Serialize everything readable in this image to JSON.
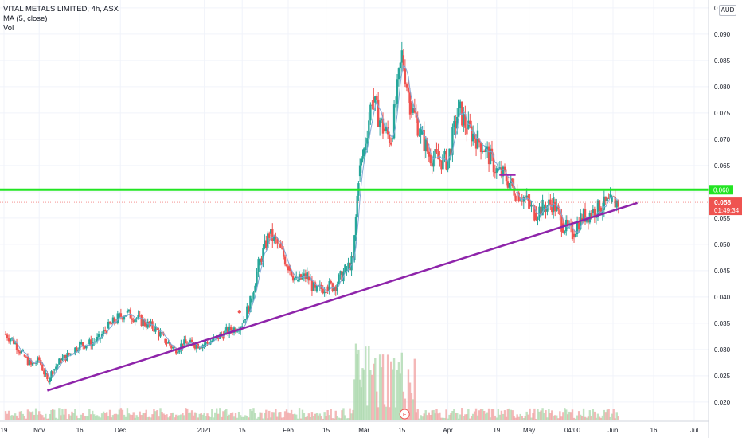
{
  "header": {
    "symbol_line": "VITAL METALS LIMITED, 4h, ASX",
    "indicator_ma": "MA (5, close)",
    "indicator_vol": "Vol",
    "currency": "AUD"
  },
  "chart_data": {
    "type": "candlestick",
    "title": "VITAL METALS LIMITED, 4h, ASX",
    "y_axis": {
      "ticks": [
        "0.020",
        "0.025",
        "0.030",
        "0.035",
        "0.040",
        "0.045",
        "0.050",
        "0.055",
        "0.060",
        "0.065",
        "0.070",
        "0.075",
        "0.080",
        "0.085",
        "0.090",
        "0.095"
      ],
      "range": [
        0.0165,
        0.0965
      ],
      "side": "right"
    },
    "x_axis": {
      "ticks": [
        {
          "label": "19",
          "date": "2020-10-19"
        },
        {
          "label": "Nov",
          "date": "2020-11-01"
        },
        {
          "label": "16",
          "date": "2020-11-16"
        },
        {
          "label": "Dec",
          "date": "2020-12-01"
        },
        {
          "label": "2021",
          "date": "2021-01-01"
        },
        {
          "label": "15",
          "date": "2021-01-15"
        },
        {
          "label": "Feb",
          "date": "2021-02-01"
        },
        {
          "label": "15",
          "date": "2021-02-15"
        },
        {
          "label": "Mar",
          "date": "2021-03-01"
        },
        {
          "label": "15",
          "date": "2021-03-15"
        },
        {
          "label": "Apr",
          "date": "2021-04-01"
        },
        {
          "label": "19",
          "date": "2021-04-19"
        },
        {
          "label": "May",
          "date": "2021-05-01"
        },
        {
          "label": "04:00",
          "date": "2021-05-17"
        },
        {
          "label": "Jun",
          "date": "2021-06-01"
        },
        {
          "label": "16",
          "date": "2021-06-16"
        },
        {
          "label": "Jul",
          "date": "2021-07-01"
        }
      ]
    },
    "price_closes": [
      [
        "2020-10-19",
        0.033
      ],
      [
        "2020-10-22",
        0.032
      ],
      [
        "2020-10-26",
        0.029
      ],
      [
        "2020-10-29",
        0.027
      ],
      [
        "2020-11-01",
        0.028
      ],
      [
        "2020-11-04",
        0.024
      ],
      [
        "2020-11-06",
        0.026
      ],
      [
        "2020-11-09",
        0.028
      ],
      [
        "2020-11-12",
        0.029
      ],
      [
        "2020-11-16",
        0.031
      ],
      [
        "2020-11-19",
        0.031
      ],
      [
        "2020-11-23",
        0.032
      ],
      [
        "2020-11-26",
        0.034
      ],
      [
        "2020-11-30",
        0.036
      ],
      [
        "2020-12-03",
        0.037
      ],
      [
        "2020-12-07",
        0.036
      ],
      [
        "2020-12-10",
        0.035
      ],
      [
        "2020-12-14",
        0.034
      ],
      [
        "2020-12-17",
        0.032
      ],
      [
        "2020-12-21",
        0.03
      ],
      [
        "2020-12-24",
        0.031
      ],
      [
        "2020-12-28",
        0.031
      ],
      [
        "2021-01-01",
        0.031
      ],
      [
        "2021-01-05",
        0.032
      ],
      [
        "2021-01-08",
        0.033
      ],
      [
        "2021-01-12",
        0.034
      ],
      [
        "2021-01-15",
        0.035
      ],
      [
        "2021-01-18",
        0.039
      ],
      [
        "2021-01-21",
        0.046
      ],
      [
        "2021-01-25",
        0.052
      ],
      [
        "2021-01-28",
        0.05
      ],
      [
        "2021-02-01",
        0.046
      ],
      [
        "2021-02-04",
        0.043
      ],
      [
        "2021-02-08",
        0.044
      ],
      [
        "2021-02-11",
        0.041
      ],
      [
        "2021-02-15",
        0.042
      ],
      [
        "2021-02-18",
        0.042
      ],
      [
        "2021-02-22",
        0.045
      ],
      [
        "2021-02-25",
        0.047
      ],
      [
        "2021-02-27",
        0.063
      ],
      [
        "2021-03-01",
        0.068
      ],
      [
        "2021-03-04",
        0.078
      ],
      [
        "2021-03-08",
        0.072
      ],
      [
        "2021-03-11",
        0.07
      ],
      [
        "2021-03-15",
        0.086
      ],
      [
        "2021-03-18",
        0.077
      ],
      [
        "2021-03-22",
        0.071
      ],
      [
        "2021-03-25",
        0.067
      ],
      [
        "2021-03-29",
        0.066
      ],
      [
        "2021-04-01",
        0.066
      ],
      [
        "2021-04-05",
        0.076
      ],
      [
        "2021-04-08",
        0.072
      ],
      [
        "2021-04-12",
        0.07
      ],
      [
        "2021-04-15",
        0.068
      ],
      [
        "2021-04-19",
        0.064
      ],
      [
        "2021-04-22",
        0.063
      ],
      [
        "2021-04-26",
        0.06
      ],
      [
        "2021-04-29",
        0.059
      ],
      [
        "2021-05-03",
        0.056
      ],
      [
        "2021-05-06",
        0.057
      ],
      [
        "2021-05-10",
        0.058
      ],
      [
        "2021-05-13",
        0.054
      ],
      [
        "2021-05-17",
        0.052
      ],
      [
        "2021-05-20",
        0.055
      ],
      [
        "2021-05-24",
        0.056
      ],
      [
        "2021-05-27",
        0.057
      ],
      [
        "2021-05-31",
        0.058
      ],
      [
        "2021-06-03",
        0.058
      ]
    ],
    "last_price": {
      "value": "0.058",
      "countdown": "01:49:34"
    },
    "horizontal_line": {
      "y": 0.0604,
      "color": "#22e522",
      "axis_label": "0.060"
    },
    "trendline": {
      "from": [
        "2020-11-04",
        0.0222
      ],
      "to": [
        "2021-06-10",
        0.0579
      ],
      "color": "#8e24aa"
    },
    "short_segment": {
      "from": [
        "2021-04-20",
        0.0632
      ],
      "to": [
        "2021-04-26",
        0.0632
      ],
      "color": "#9c27b0"
    },
    "colors": {
      "up": "#26a69a",
      "down": "#ef5350",
      "ma": "#7fa7d6",
      "vol_up": "#a5d6a7",
      "vol_down": "#ef9a9a"
    },
    "grid": true
  }
}
